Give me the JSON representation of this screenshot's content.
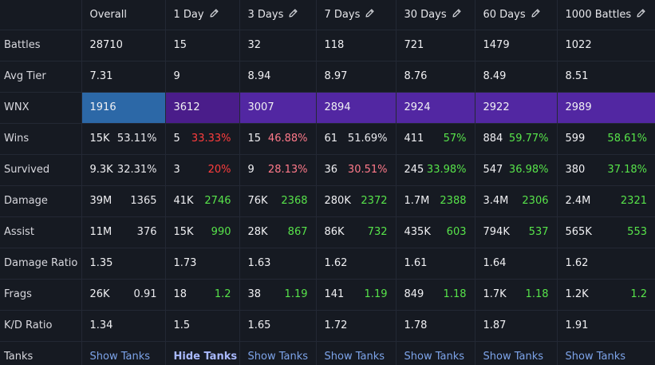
{
  "columns": [
    {
      "label": "Overall",
      "editable": false
    },
    {
      "label": "1 Day",
      "editable": true
    },
    {
      "label": "3 Days",
      "editable": true
    },
    {
      "label": "7 Days",
      "editable": true
    },
    {
      "label": "30 Days",
      "editable": true
    },
    {
      "label": "60 Days",
      "editable": true
    },
    {
      "label": "1000 Battles",
      "editable": true
    }
  ],
  "edit_icon": "pencil-icon",
  "colors": {
    "wnx_overall": "#2c68a7",
    "wnx_purple": "#5227a2",
    "wnx_purple_dark": "#4a1d8a",
    "green": "#57e34a",
    "red": "#ff3d3d",
    "pink": "#ff7a8a",
    "link": "#7da4ea"
  },
  "rows": [
    {
      "label": "Battles",
      "cells": [
        {
          "main": "28710"
        },
        {
          "main": "15"
        },
        {
          "main": "32"
        },
        {
          "main": "118"
        },
        {
          "main": "721"
        },
        {
          "main": "1479"
        },
        {
          "main": "1022"
        }
      ]
    },
    {
      "label": "Avg Tier",
      "cells": [
        {
          "main": "7.31"
        },
        {
          "main": "9"
        },
        {
          "main": "8.94"
        },
        {
          "main": "8.97"
        },
        {
          "main": "8.76"
        },
        {
          "main": "8.49"
        },
        {
          "main": "8.51"
        }
      ]
    },
    {
      "label": "WNX",
      "wnx": true,
      "cells": [
        {
          "main": "1916",
          "bg": "#2c68a7"
        },
        {
          "main": "3612",
          "bg": "#4a1d8a"
        },
        {
          "main": "3007",
          "bg": "#5227a2"
        },
        {
          "main": "2894",
          "bg": "#5227a2"
        },
        {
          "main": "2924",
          "bg": "#5227a2"
        },
        {
          "main": "2922",
          "bg": "#5227a2"
        },
        {
          "main": "2989",
          "bg": "#5227a2"
        }
      ]
    },
    {
      "label": "Wins",
      "cells": [
        {
          "main": "15K",
          "sub": "53.11%",
          "sub_color": "white"
        },
        {
          "main": "5",
          "sub": "33.33%",
          "sub_color": "red"
        },
        {
          "main": "15",
          "sub": "46.88%",
          "sub_color": "pink"
        },
        {
          "main": "61",
          "sub": "51.69%",
          "sub_color": "white"
        },
        {
          "main": "411",
          "sub": "57%",
          "sub_color": "green"
        },
        {
          "main": "884",
          "sub": "59.77%",
          "sub_color": "green"
        },
        {
          "main": "599",
          "sub": "58.61%",
          "sub_color": "green"
        }
      ]
    },
    {
      "label": "Survived",
      "cells": [
        {
          "main": "9.3K",
          "sub": "32.31%",
          "sub_color": "white"
        },
        {
          "main": "3",
          "sub": "20%",
          "sub_color": "red"
        },
        {
          "main": "9",
          "sub": "28.13%",
          "sub_color": "pink"
        },
        {
          "main": "36",
          "sub": "30.51%",
          "sub_color": "pink"
        },
        {
          "main": "245",
          "sub": "33.98%",
          "sub_color": "green"
        },
        {
          "main": "547",
          "sub": "36.98%",
          "sub_color": "green"
        },
        {
          "main": "380",
          "sub": "37.18%",
          "sub_color": "green"
        }
      ]
    },
    {
      "label": "Damage",
      "cells": [
        {
          "main": "39M",
          "sub": "1365",
          "sub_color": "white"
        },
        {
          "main": "41K",
          "sub": "2746",
          "sub_color": "green"
        },
        {
          "main": "76K",
          "sub": "2368",
          "sub_color": "green"
        },
        {
          "main": "280K",
          "sub": "2372",
          "sub_color": "green"
        },
        {
          "main": "1.7M",
          "sub": "2388",
          "sub_color": "green"
        },
        {
          "main": "3.4M",
          "sub": "2306",
          "sub_color": "green"
        },
        {
          "main": "2.4M",
          "sub": "2321",
          "sub_color": "green"
        }
      ]
    },
    {
      "label": "Assist",
      "cells": [
        {
          "main": "11M",
          "sub": "376",
          "sub_color": "white"
        },
        {
          "main": "15K",
          "sub": "990",
          "sub_color": "green"
        },
        {
          "main": "28K",
          "sub": "867",
          "sub_color": "green"
        },
        {
          "main": "86K",
          "sub": "732",
          "sub_color": "green"
        },
        {
          "main": "435K",
          "sub": "603",
          "sub_color": "green"
        },
        {
          "main": "794K",
          "sub": "537",
          "sub_color": "green"
        },
        {
          "main": "565K",
          "sub": "553",
          "sub_color": "green"
        }
      ]
    },
    {
      "label": "Damage Ratio",
      "cells": [
        {
          "main": "1.35",
          "main_color": "white"
        },
        {
          "main": "1.73",
          "main_color": "green"
        },
        {
          "main": "1.63",
          "main_color": "green"
        },
        {
          "main": "1.62",
          "main_color": "green"
        },
        {
          "main": "1.61",
          "main_color": "green"
        },
        {
          "main": "1.64",
          "main_color": "green"
        },
        {
          "main": "1.62",
          "main_color": "green"
        }
      ]
    },
    {
      "label": "Frags",
      "cells": [
        {
          "main": "26K",
          "sub": "0.91",
          "sub_color": "white"
        },
        {
          "main": "18",
          "sub": "1.2",
          "sub_color": "green"
        },
        {
          "main": "38",
          "sub": "1.19",
          "sub_color": "green"
        },
        {
          "main": "141",
          "sub": "1.19",
          "sub_color": "green"
        },
        {
          "main": "849",
          "sub": "1.18",
          "sub_color": "green"
        },
        {
          "main": "1.7K",
          "sub": "1.18",
          "sub_color": "green"
        },
        {
          "main": "1.2K",
          "sub": "1.2",
          "sub_color": "green"
        }
      ]
    },
    {
      "label": "K/D Ratio",
      "cells": [
        {
          "main": "1.34",
          "main_color": "white"
        },
        {
          "main": "1.5",
          "main_color": "green"
        },
        {
          "main": "1.65",
          "main_color": "green"
        },
        {
          "main": "1.72",
          "main_color": "green"
        },
        {
          "main": "1.78",
          "main_color": "green"
        },
        {
          "main": "1.87",
          "main_color": "green"
        },
        {
          "main": "1.91",
          "main_color": "green"
        }
      ]
    }
  ],
  "tanks_row": {
    "label": "Tanks",
    "links": [
      "Show Tanks",
      "Hide Tanks",
      "Show Tanks",
      "Show Tanks",
      "Show Tanks",
      "Show Tanks",
      "Show Tanks"
    ],
    "active_index": 1
  }
}
